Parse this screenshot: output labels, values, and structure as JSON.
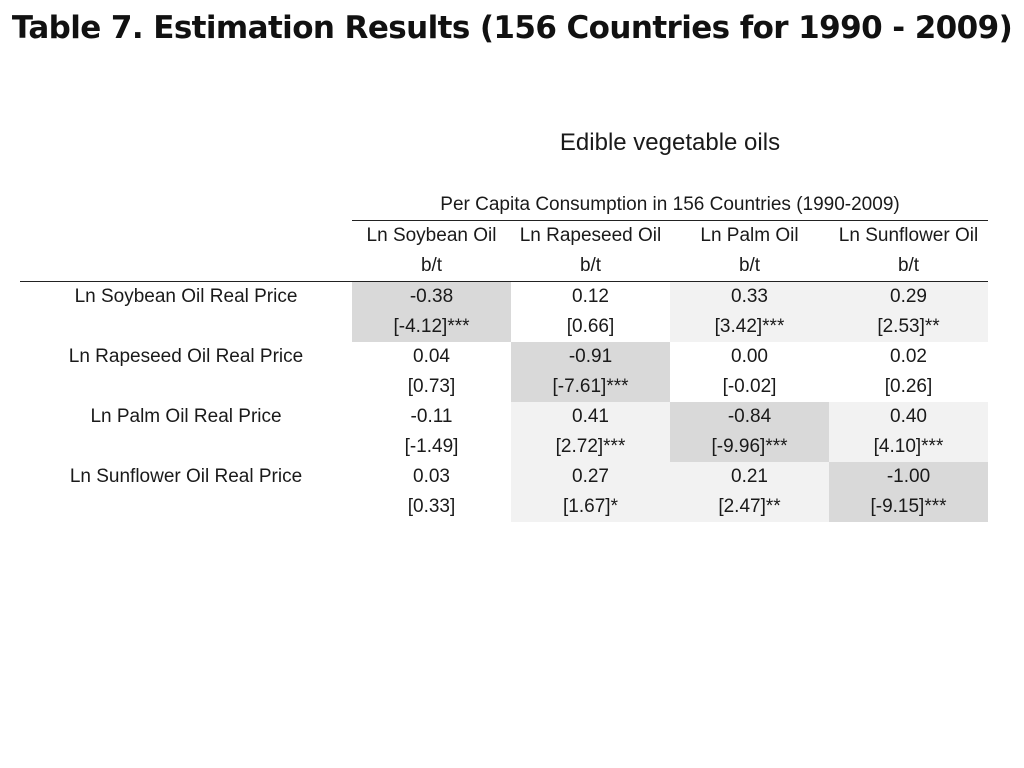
{
  "title": "Table 7. Estimation Results (156 Countries for 1990 - 2009)",
  "group_title": "Edible vegetable oils",
  "subheader": "Per Capita Consumption in 156 Countries (1990-2009)",
  "columns": [
    {
      "name": "Ln Soybean Oil",
      "unit": "b/t"
    },
    {
      "name": "Ln Rapeseed Oil",
      "unit": "b/t"
    },
    {
      "name": "Ln Palm Oil",
      "unit": "b/t"
    },
    {
      "name": "Ln Sunflower Oil",
      "unit": "b/t"
    }
  ],
  "rows": [
    {
      "label": "Ln Soybean Oil Real Price",
      "estimates": [
        "-0.38",
        "0.12",
        "0.33",
        "0.29"
      ],
      "tstats": [
        "[-4.12]***",
        "[0.66]",
        "[3.42]***",
        "[2.53]**"
      ]
    },
    {
      "label": "Ln Rapeseed Oil Real Price",
      "estimates": [
        "0.04",
        "-0.91",
        "0.00",
        "0.02"
      ],
      "tstats": [
        "[0.73]",
        "[-7.61]***",
        "[-0.02]",
        "[0.26]"
      ]
    },
    {
      "label": "Ln Palm Oil Real Price",
      "estimates": [
        "-0.11",
        "0.41",
        "-0.84",
        "0.40"
      ],
      "tstats": [
        "[-1.49]",
        "[2.72]***",
        "[-9.96]***",
        "[4.10]***"
      ]
    },
    {
      "label": "Ln Sunflower Oil Real Price",
      "estimates": [
        "0.03",
        "0.27",
        "0.21",
        "-1.00"
      ],
      "tstats": [
        "[0.33]",
        "[1.67]*",
        "[2.47]**",
        "[-9.15]***"
      ]
    }
  ],
  "shading_colors": {
    "diagonal": "#d9d9d9",
    "significant": "#f2f2f2",
    "plain": "#ffffff"
  }
}
